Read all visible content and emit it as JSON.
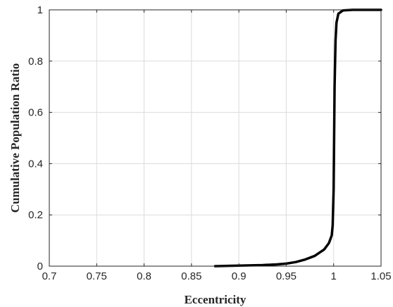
{
  "chart_data": {
    "type": "line",
    "title": "",
    "xlabel": "Eccentricity",
    "ylabel": "Cumulative Population Ratio",
    "xlim": [
      0.7,
      1.05
    ],
    "ylim": [
      0,
      1
    ],
    "xticks": [
      0.7,
      0.75,
      0.8,
      0.85,
      0.9,
      0.95,
      1,
      1.05
    ],
    "xtick_labels": [
      "0.7",
      "0.75",
      "0.8",
      "0.85",
      "0.9",
      "0.95",
      "1",
      "1.05"
    ],
    "yticks": [
      0,
      0.2,
      0.4,
      0.6,
      0.8,
      1
    ],
    "ytick_labels": [
      "0",
      "0.2",
      "0.4",
      "0.6",
      "0.8",
      "1"
    ],
    "grid": true,
    "legend": "none",
    "series": [
      {
        "color": "#000000",
        "x": [
          0.875,
          0.9,
          0.925,
          0.94,
          0.95,
          0.96,
          0.97,
          0.98,
          0.99,
          0.995,
          0.998,
          0.999,
          1.0,
          1.0005,
          1.001,
          1.002,
          1.003,
          1.005,
          1.01,
          1.02,
          1.05
        ],
        "y": [
          0.0,
          0.002,
          0.004,
          0.007,
          0.01,
          0.016,
          0.026,
          0.04,
          0.065,
          0.09,
          0.12,
          0.16,
          0.3,
          0.5,
          0.7,
          0.88,
          0.95,
          0.985,
          0.998,
          1.0,
          1.0
        ]
      }
    ]
  }
}
